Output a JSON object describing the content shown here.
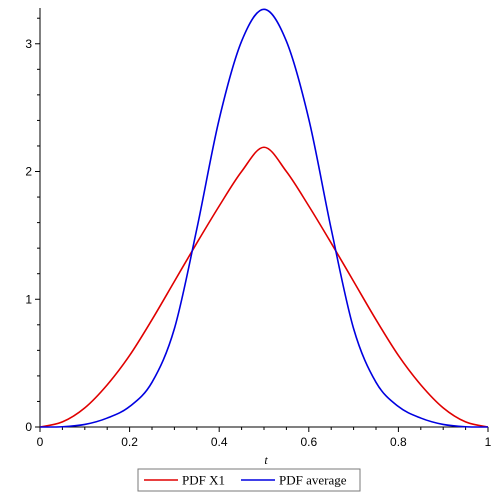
{
  "chart_data": {
    "type": "line",
    "xlabel": "t",
    "ylabel": "",
    "xlim": [
      0,
      1
    ],
    "ylim": [
      0,
      3.28
    ],
    "x_ticks": [
      0,
      0.2,
      0.4,
      0.6,
      0.8,
      1
    ],
    "x_tick_labels": [
      "0",
      "0.2",
      "0.4",
      "0.6",
      "0.8",
      "1"
    ],
    "y_ticks": [
      0,
      1,
      2,
      3
    ],
    "y_tick_labels": [
      "0",
      "1",
      "2",
      "3"
    ],
    "grid": false,
    "legend_position": "bottom",
    "series": [
      {
        "name": "PDF X1",
        "color": "#e00000",
        "x": [
          0,
          0.05,
          0.1,
          0.15,
          0.2,
          0.25,
          0.3,
          0.35,
          0.4,
          0.45,
          0.5,
          0.55,
          0.6,
          0.65,
          0.7,
          0.75,
          0.8,
          0.85,
          0.9,
          0.95,
          1
        ],
        "y": [
          0,
          0.04,
          0.15,
          0.33,
          0.56,
          0.84,
          1.14,
          1.44,
          1.73,
          2.0,
          2.19,
          2.0,
          1.73,
          1.44,
          1.14,
          0.84,
          0.56,
          0.33,
          0.15,
          0.04,
          0
        ]
      },
      {
        "name": "PDF average",
        "color": "#0000e0",
        "x": [
          0,
          0.05,
          0.1,
          0.15,
          0.2,
          0.25,
          0.3,
          0.35,
          0.4,
          0.45,
          0.5,
          0.55,
          0.6,
          0.65,
          0.7,
          0.75,
          0.8,
          0.85,
          0.9,
          0.95,
          1
        ],
        "y": [
          0,
          0.002,
          0.02,
          0.07,
          0.16,
          0.35,
          0.77,
          1.55,
          2.41,
          3.02,
          3.27,
          3.02,
          2.41,
          1.55,
          0.77,
          0.35,
          0.16,
          0.07,
          0.02,
          0.002,
          0
        ]
      }
    ]
  }
}
